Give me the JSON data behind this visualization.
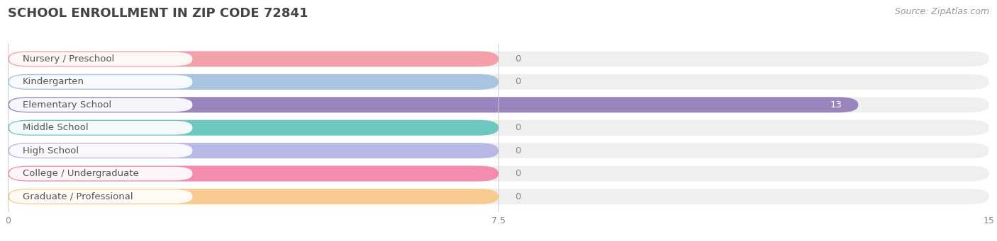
{
  "title": "SCHOOL ENROLLMENT IN ZIP CODE 72841",
  "source": "Source: ZipAtlas.com",
  "categories": [
    "Nursery / Preschool",
    "Kindergarten",
    "Elementary School",
    "Middle School",
    "High School",
    "College / Undergraduate",
    "Graduate / Professional"
  ],
  "values": [
    0,
    0,
    13,
    0,
    0,
    0,
    0
  ],
  "bar_colors": [
    "#f4a0a8",
    "#a8c4e0",
    "#9b85be",
    "#6dc8c0",
    "#b8b8e8",
    "#f48cb0",
    "#f8cc90"
  ],
  "xlim": [
    0,
    15
  ],
  "xticks": [
    0,
    7.5,
    15
  ],
  "background_color": "#ffffff",
  "bar_bg_color": "#f0f0f0",
  "value_label_color_inside": "#ffffff",
  "value_label_color_outside": "#888888",
  "title_fontsize": 13,
  "source_fontsize": 9,
  "label_fontsize": 9.5,
  "tick_fontsize": 9
}
